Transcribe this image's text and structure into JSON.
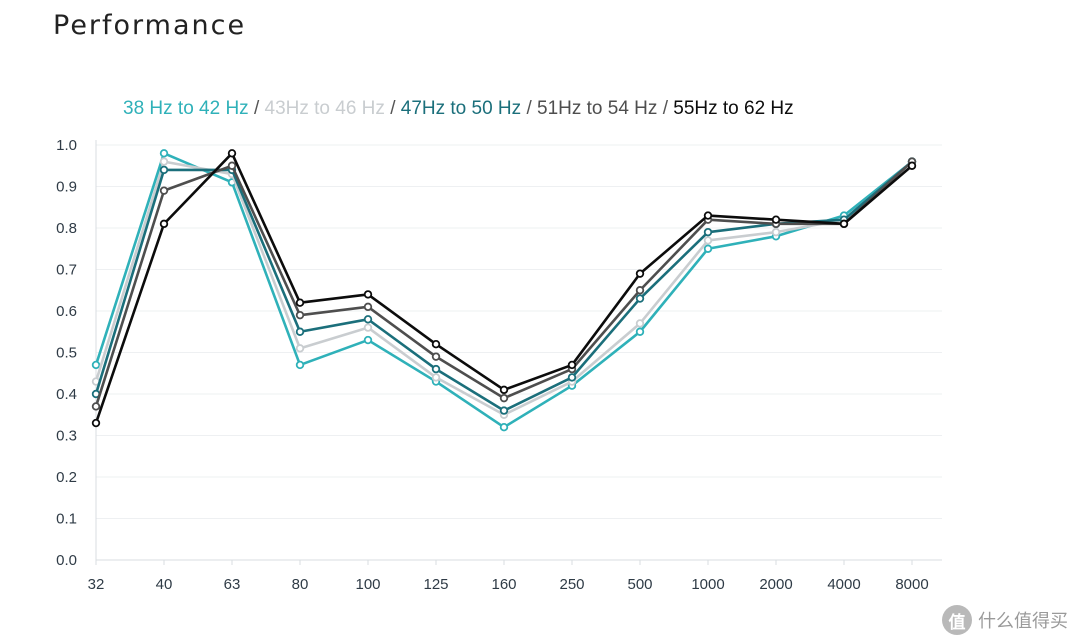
{
  "page": {
    "title": "Performance"
  },
  "watermark": {
    "logo_glyph": "值",
    "text": "什么值得买"
  },
  "legend_separator": " / ",
  "chart_data": {
    "type": "line",
    "title": "",
    "xlabel": "",
    "ylabel": "",
    "categories": [
      "32",
      "40",
      "63",
      "80",
      "100",
      "125",
      "160",
      "250",
      "500",
      "1000",
      "2000",
      "4000",
      "8000"
    ],
    "ylim": [
      0,
      1.0
    ],
    "yticks": [
      "0.0",
      "0.1",
      "0.2",
      "0.3",
      "0.4",
      "0.5",
      "0.6",
      "0.7",
      "0.8",
      "0.9",
      "1.0"
    ],
    "grid": true,
    "legend_position": "top-center",
    "series": [
      {
        "name": "38 Hz to 42 Hz",
        "color": "#2fb1b9",
        "values": [
          0.47,
          0.98,
          0.91,
          0.47,
          0.53,
          0.43,
          0.32,
          0.42,
          0.55,
          0.75,
          0.78,
          0.83,
          0.96
        ]
      },
      {
        "name": "43Hz to 46 Hz",
        "color": "#c9cdd0",
        "values": [
          0.43,
          0.96,
          0.93,
          0.51,
          0.56,
          0.44,
          0.35,
          0.43,
          0.57,
          0.77,
          0.79,
          0.82,
          0.96
        ]
      },
      {
        "name": "47Hz to 50 Hz",
        "color": "#1b6f7b",
        "values": [
          0.4,
          0.94,
          0.94,
          0.55,
          0.58,
          0.46,
          0.36,
          0.44,
          0.63,
          0.79,
          0.81,
          0.82,
          0.96
        ]
      },
      {
        "name": "51Hz to 54 Hz",
        "color": "#4e4e4e",
        "values": [
          0.37,
          0.89,
          0.95,
          0.59,
          0.61,
          0.49,
          0.39,
          0.46,
          0.65,
          0.82,
          0.81,
          0.81,
          0.96
        ]
      },
      {
        "name": "55Hz to 62 Hz",
        "color": "#0c0c0c",
        "values": [
          0.33,
          0.81,
          0.98,
          0.62,
          0.64,
          0.52,
          0.41,
          0.47,
          0.69,
          0.83,
          0.82,
          0.81,
          0.95
        ]
      }
    ]
  }
}
